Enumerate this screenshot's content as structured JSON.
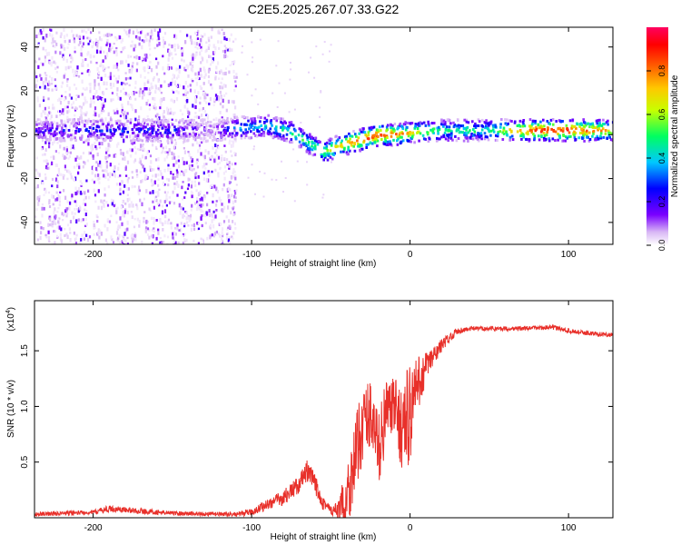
{
  "title": "C2E5.2025.267.07.33.G22",
  "chart_data": [
    {
      "type": "heatmap",
      "title": "C2E5.2025.267.07.33.G22",
      "xlabel": "Height of straight line (km)",
      "ylabel": "Frequency (Hz)",
      "xlim": [
        -237,
        128
      ],
      "ylim": [
        -50,
        49
      ],
      "xticks": [
        -200,
        -100,
        0,
        100
      ],
      "yticks": [
        -40,
        -20,
        0,
        20,
        40
      ],
      "xtick_labels": [
        "-200",
        "-100",
        "0",
        "100"
      ],
      "ytick_labels": [
        "-40",
        "-20",
        "0",
        "20",
        "40"
      ],
      "ridge": {
        "x": [
          -237,
          -200,
          -150,
          -125,
          -110,
          -90,
          -75,
          -60,
          -55,
          -45,
          -35,
          -20,
          -10,
          0,
          20,
          50,
          80,
          100,
          128
        ],
        "freq": [
          2,
          2,
          2,
          2,
          3,
          4,
          1,
          -6,
          -8,
          -5,
          -3,
          0,
          0,
          1,
          2,
          2,
          2,
          2,
          2
        ],
        "amplitude": [
          0.25,
          0.3,
          0.3,
          0.15,
          0.4,
          0.45,
          0.5,
          0.55,
          0.6,
          0.7,
          0.8,
          0.9,
          0.8,
          0.7,
          0.5,
          0.5,
          0.9,
          0.9,
          0.7
        ]
      },
      "noise_region_x": [
        -237,
        -110
      ],
      "colorbar": {
        "label": "Normalized spectral amplitude",
        "range": [
          0,
          1
        ],
        "ticks": [
          0.0,
          0.2,
          0.4,
          0.6,
          0.8
        ],
        "tick_labels": [
          "0.0",
          "0.2",
          "0.4",
          "0.6",
          "0.8"
        ],
        "colors": [
          "#ffffff",
          "#d9b8f5",
          "#7a00ff",
          "#0000ff",
          "#00c8ff",
          "#00ff60",
          "#c8ff00",
          "#ffc800",
          "#ff6000",
          "#ff0000",
          "#ff0060"
        ]
      }
    },
    {
      "type": "line",
      "xlabel": "Height of straight line (km)",
      "ylabel": "SNR (10 * v/v)",
      "y_multiplier_label": "(x10",
      "y_multiplier_exp": "4",
      "y_multiplier_close": ")",
      "xlim": [
        -237,
        128
      ],
      "ylim": [
        0,
        1.95
      ],
      "xticks": [
        -200,
        -100,
        0,
        100
      ],
      "yticks": [
        0.5,
        1.0,
        1.5
      ],
      "xtick_labels": [
        "-200",
        "-100",
        "0",
        "100"
      ],
      "ytick_labels": [
        "0.5",
        "1.0",
        "1.5"
      ],
      "series": [
        {
          "name": "SNR",
          "color": "#e8302a",
          "x": [
            -237,
            -200,
            -190,
            -150,
            -110,
            -100,
            -90,
            -80,
            -70,
            -65,
            -60,
            -55,
            -50,
            -45,
            -40,
            -35,
            -30,
            -25,
            -20,
            -15,
            -10,
            -5,
            0,
            5,
            10,
            15,
            20,
            25,
            30,
            40,
            50,
            70,
            90,
            100,
            110,
            128
          ],
          "y": [
            0.03,
            0.05,
            0.08,
            0.04,
            0.03,
            0.05,
            0.12,
            0.18,
            0.3,
            0.42,
            0.3,
            0.15,
            0.06,
            0.05,
            0.2,
            0.5,
            0.85,
            0.95,
            0.6,
            0.95,
            1.0,
            0.8,
            0.95,
            1.2,
            1.35,
            1.45,
            1.55,
            1.62,
            1.68,
            1.7,
            1.7,
            1.7,
            1.71,
            1.68,
            1.66,
            1.64
          ],
          "amplitude": [
            0.02,
            0.02,
            0.03,
            0.02,
            0.02,
            0.03,
            0.05,
            0.07,
            0.08,
            0.1,
            0.1,
            0.08,
            0.05,
            0.1,
            0.3,
            0.35,
            0.35,
            0.3,
            0.35,
            0.3,
            0.25,
            0.4,
            0.5,
            0.25,
            0.15,
            0.1,
            0.06,
            0.04,
            0.03,
            0.02,
            0.02,
            0.02,
            0.02,
            0.02,
            0.02,
            0.02
          ]
        }
      ]
    }
  ]
}
